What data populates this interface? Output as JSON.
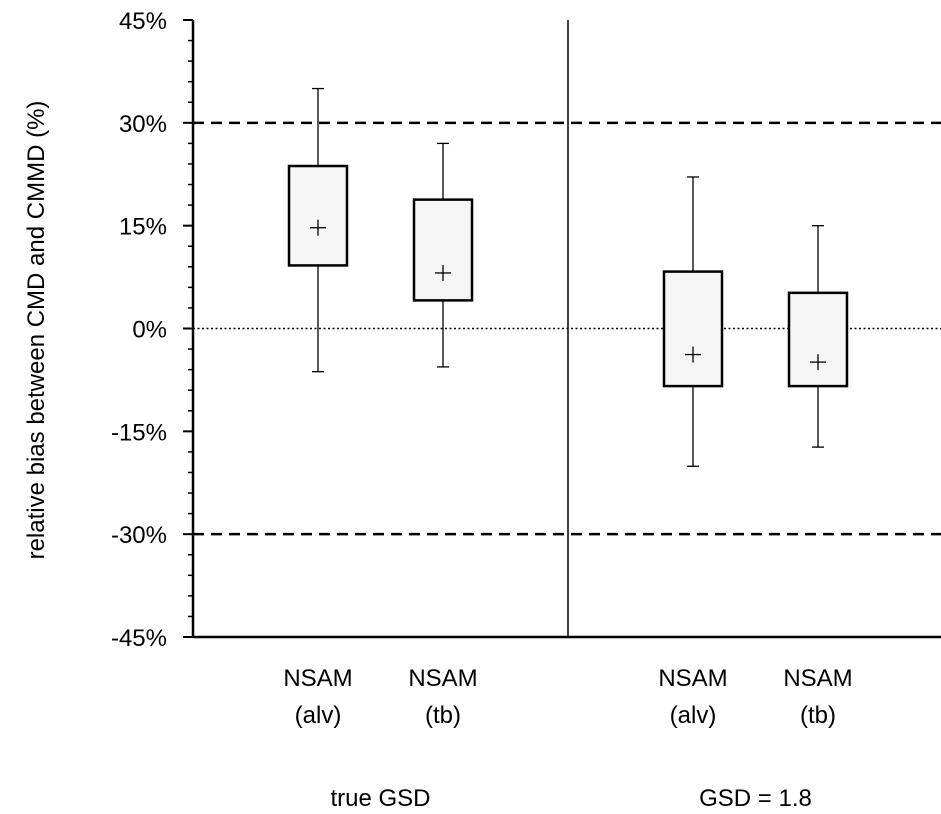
{
  "chart_data": {
    "type": "box",
    "ylabel": "relative bias between CMD and CMMD (%)",
    "xlabel": "",
    "ylim": [
      -45,
      45
    ],
    "y_ticks": [
      {
        "value": 45,
        "label": "45%"
      },
      {
        "value": 30,
        "label": "30%"
      },
      {
        "value": 15,
        "label": "15%"
      },
      {
        "value": 0,
        "label": "0%"
      },
      {
        "value": -15,
        "label": "-15%"
      },
      {
        "value": -30,
        "label": "-30%"
      },
      {
        "value": -45,
        "label": "-45%"
      }
    ],
    "minor_tick_step": 3,
    "reference_lines": [
      {
        "value": 30,
        "style": "dashed"
      },
      {
        "value": -30,
        "style": "dashed"
      },
      {
        "value": 0,
        "style": "dotted"
      }
    ],
    "groups": [
      {
        "label": "true GSD",
        "boxes": [
          {
            "label_line1": "NSAM",
            "label_line2": "(alv)",
            "whisker_low": -6.3,
            "q1": 9.2,
            "mean": 14.7,
            "q3": 23.7,
            "whisker_high": 35.0
          },
          {
            "label_line1": "NSAM",
            "label_line2": "(tb)",
            "whisker_low": -5.6,
            "q1": 4.1,
            "mean": 8.1,
            "q3": 18.8,
            "whisker_high": 27.0
          }
        ]
      },
      {
        "label": "GSD = 1.8",
        "boxes": [
          {
            "label_line1": "NSAM",
            "label_line2": "(alv)",
            "whisker_low": -20.1,
            "q1": -8.4,
            "mean": -3.8,
            "q3": 8.3,
            "whisker_high": 22.1
          },
          {
            "label_line1": "NSAM",
            "label_line2": "(tb)",
            "whisker_low": -17.3,
            "q1": -8.4,
            "mean": -4.9,
            "q3": 5.2,
            "whisker_high": 15.0
          }
        ]
      }
    ],
    "grid": false,
    "legend": "none"
  },
  "colors": {
    "box_fill": "#f5f5f5",
    "stroke": "#000000"
  }
}
